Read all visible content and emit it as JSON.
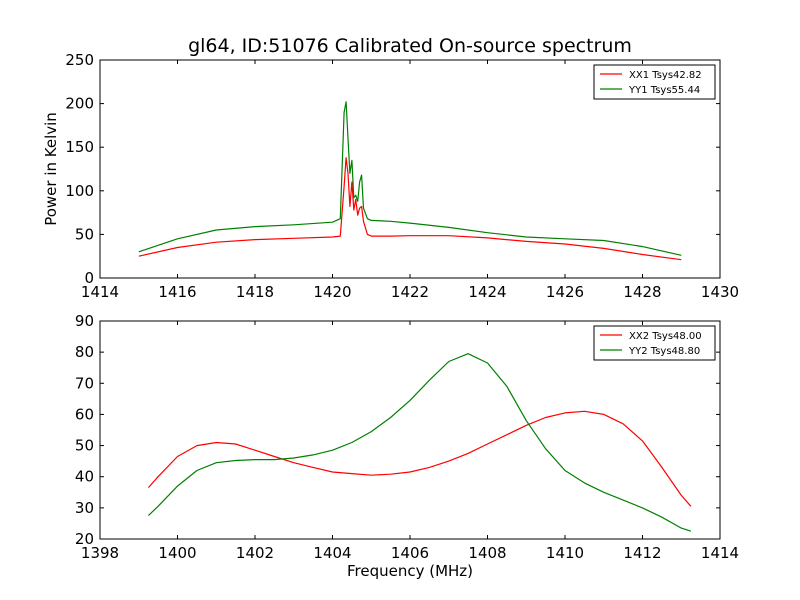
{
  "chart_data": [
    {
      "type": "line",
      "title": "gl64, ID:51076 Calibrated On-source spectrum",
      "xlabel": "",
      "ylabel": "Power in Kelvin",
      "xlim": [
        1414,
        1430
      ],
      "ylim": [
        0,
        250
      ],
      "xticks": [
        "1414",
        "1416",
        "1418",
        "1420",
        "1422",
        "1424",
        "1426",
        "1428",
        "1430"
      ],
      "yticks": [
        "0",
        "50",
        "100",
        "150",
        "200",
        "250"
      ],
      "grid": false,
      "legend_position": "top-right",
      "series": [
        {
          "name": "XX1 Tsys42.82",
          "color": "#ff0000",
          "x": [
            1415.0,
            1416.0,
            1417.0,
            1418.0,
            1419.0,
            1420.0,
            1420.2,
            1420.3,
            1420.35,
            1420.4,
            1420.45,
            1420.5,
            1420.55,
            1420.6,
            1420.65,
            1420.7,
            1420.75,
            1420.8,
            1420.9,
            1421.0,
            1421.5,
            1422.0,
            1423.0,
            1424.0,
            1425.0,
            1426.0,
            1427.0,
            1428.0,
            1429.0
          ],
          "y": [
            25,
            35,
            41,
            44,
            45.5,
            47,
            48,
            105,
            138,
            120,
            82,
            110,
            78,
            90,
            72,
            80,
            82,
            65,
            50,
            48,
            48,
            48.5,
            48.5,
            46,
            42,
            39,
            34,
            27,
            21
          ]
        },
        {
          "name": "YY1 Tsys55.44",
          "color": "#008000",
          "x": [
            1415.0,
            1416.0,
            1417.0,
            1418.0,
            1419.0,
            1420.0,
            1420.2,
            1420.3,
            1420.35,
            1420.4,
            1420.45,
            1420.5,
            1420.55,
            1420.6,
            1420.65,
            1420.7,
            1420.75,
            1420.8,
            1420.9,
            1421.0,
            1421.5,
            1422.0,
            1423.0,
            1424.0,
            1425.0,
            1426.0,
            1427.0,
            1428.0,
            1429.0
          ],
          "y": [
            30,
            45,
            55,
            59,
            61,
            64,
            68,
            190,
            202,
            160,
            120,
            135,
            92,
            95,
            88,
            110,
            118,
            80,
            68,
            66,
            65,
            63,
            58,
            52,
            47,
            45,
            43,
            36,
            26
          ]
        }
      ]
    },
    {
      "type": "line",
      "title": "",
      "xlabel": "Frequency (MHz)",
      "ylabel": "",
      "xlim": [
        1398,
        1414
      ],
      "ylim": [
        20,
        90
      ],
      "xticks": [
        "1398",
        "1400",
        "1402",
        "1404",
        "1406",
        "1408",
        "1410",
        "1412",
        "1414"
      ],
      "yticks": [
        "20",
        "30",
        "40",
        "50",
        "60",
        "70",
        "80",
        "90"
      ],
      "grid": false,
      "legend_position": "top-right",
      "series": [
        {
          "name": "XX2 Tsys48.00",
          "color": "#ff0000",
          "x": [
            1399.25,
            1399.5,
            1400.0,
            1400.5,
            1401.0,
            1401.5,
            1402.0,
            1402.5,
            1403.0,
            1403.5,
            1404.0,
            1404.5,
            1405.0,
            1405.5,
            1406.0,
            1406.5,
            1407.0,
            1407.5,
            1408.0,
            1408.5,
            1409.0,
            1409.5,
            1410.0,
            1410.5,
            1411.0,
            1411.5,
            1412.0,
            1412.5,
            1413.0,
            1413.25
          ],
          "y": [
            36.5,
            40,
            46.5,
            50,
            51,
            50.5,
            48.5,
            46.5,
            44.5,
            43,
            41.5,
            41,
            40.5,
            40.8,
            41.5,
            43,
            45,
            47.5,
            50.5,
            53.5,
            56.5,
            59,
            60.5,
            61,
            60,
            57,
            51.5,
            43,
            34,
            30.5
          ]
        },
        {
          "name": "YY2 Tsys48.80",
          "color": "#008000",
          "x": [
            1399.25,
            1399.5,
            1400.0,
            1400.5,
            1401.0,
            1401.5,
            1402.0,
            1402.5,
            1403.0,
            1403.5,
            1404.0,
            1404.5,
            1405.0,
            1405.5,
            1406.0,
            1406.5,
            1407.0,
            1407.5,
            1408.0,
            1408.5,
            1409.0,
            1409.5,
            1410.0,
            1410.5,
            1411.0,
            1411.5,
            1412.0,
            1412.5,
            1413.0,
            1413.25
          ],
          "y": [
            27.5,
            30.5,
            37,
            42,
            44.5,
            45.2,
            45.5,
            45.5,
            46,
            47,
            48.5,
            51,
            54.5,
            59,
            64.5,
            71,
            77,
            79.5,
            76.5,
            69,
            58,
            49,
            42,
            38,
            35,
            32.5,
            30,
            27,
            23.5,
            22.5
          ]
        }
      ]
    }
  ]
}
